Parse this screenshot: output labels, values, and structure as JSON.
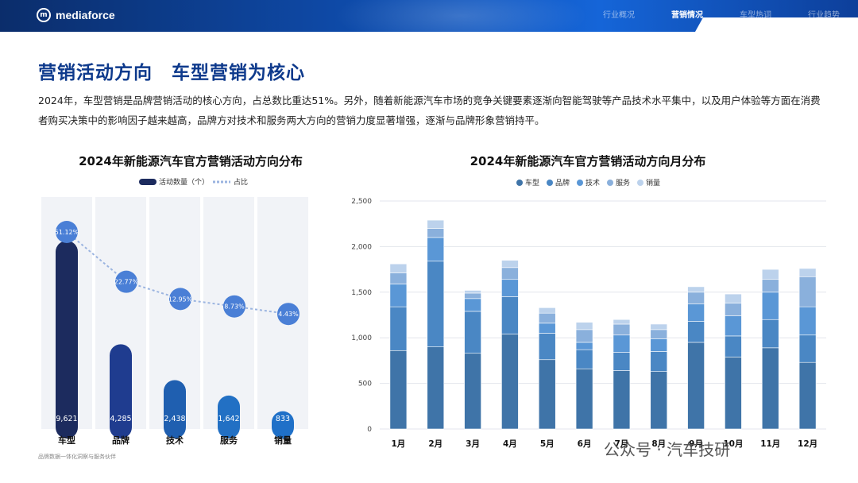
{
  "header": {
    "logo_mark": "m",
    "logo_text": "mediaforce",
    "nav": [
      "行业概况",
      "营销情况",
      "车型热词",
      "行业趋势"
    ],
    "active_nav": 1
  },
  "title": "营销活动方向　车型营销为核心",
  "description": "2024年，车型营销是品牌营销活动的核心方向，占总数比重达51%。另外，随着新能源汽车市场的竞争关键要素逐渐向智能驾驶等产品技术水平集中，以及用户体验等方面在消费者购买决策中的影响因子越来越高，品牌方对技术和服务两大方向的营销力度显著增强，逐渐与品牌形象营销持平。",
  "source": "品牌数据一体化洞察与服务伙伴",
  "watermark": "公众号 · 汽车技研",
  "colors": {
    "车型": "#3f74a8",
    "品牌": "#4a87c4",
    "技术": "#5a97d6",
    "服务": "#8ab0dc",
    "销量": "#bcd2ec"
  },
  "chart_data": [
    {
      "type": "bar",
      "title": "2024年新能源汽车官方营销活动方向分布",
      "legend": [
        "活动数量（个）",
        "占比"
      ],
      "categories": [
        "车型",
        "品牌",
        "技术",
        "服务",
        "销量"
      ],
      "values": [
        9621,
        4285,
        2438,
        1642,
        833
      ],
      "value_labels": [
        "9,621",
        "4,285",
        "2,438",
        "1,642",
        "833"
      ],
      "share": [
        51.12,
        22.77,
        12.95,
        8.73,
        4.43
      ],
      "share_labels": [
        "51.12%",
        "22.77%",
        "12.95%",
        "8.73%",
        "4.43%"
      ],
      "bar_colors": [
        "#1c2b5e",
        "#1f3c8f",
        "#1f5fb0",
        "#2270c4",
        "#1f70c8"
      ],
      "bubble_color": "#4a7fd6"
    },
    {
      "type": "bar",
      "stacked": true,
      "title": "2024年新能源汽车官方营销活动方向月分布",
      "categories": [
        "1月",
        "2月",
        "3月",
        "4月",
        "5月",
        "6月",
        "7月",
        "8月",
        "9月",
        "10月",
        "11月",
        "12月"
      ],
      "ylim": [
        0,
        2500
      ],
      "yticks": [
        0,
        500,
        1000,
        1500,
        2000,
        2500
      ],
      "ytick_labels": [
        "0",
        "500",
        "1,000",
        "1,500",
        "2,000",
        "2,500"
      ],
      "series": [
        {
          "name": "车型",
          "values": [
            860,
            900,
            830,
            1040,
            760,
            660,
            640,
            630,
            950,
            790,
            890,
            730
          ]
        },
        {
          "name": "品牌",
          "values": [
            480,
            940,
            460,
            410,
            290,
            210,
            200,
            220,
            230,
            230,
            310,
            300
          ]
        },
        {
          "name": "技术",
          "values": [
            250,
            260,
            140,
            190,
            110,
            80,
            190,
            140,
            190,
            220,
            300,
            310
          ]
        },
        {
          "name": "服务",
          "values": [
            120,
            100,
            60,
            130,
            110,
            140,
            120,
            100,
            130,
            140,
            140,
            330
          ]
        },
        {
          "name": "销量",
          "values": [
            100,
            90,
            30,
            80,
            60,
            80,
            50,
            60,
            60,
            100,
            110,
            90
          ]
        }
      ]
    }
  ]
}
